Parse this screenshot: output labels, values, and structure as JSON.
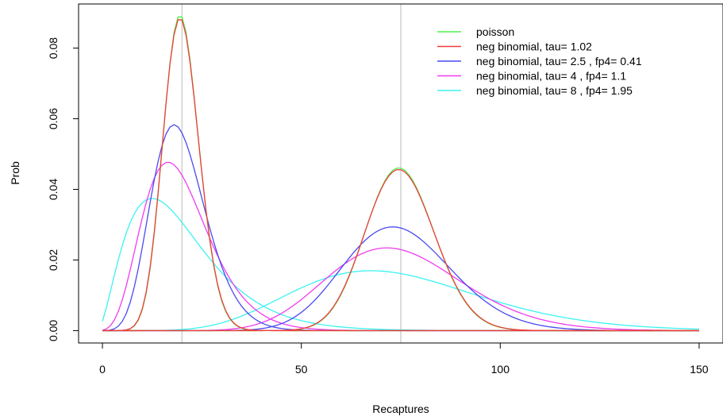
{
  "chart_data": {
    "type": "line",
    "title": "",
    "xlabel": "Recaptures",
    "ylabel": "Prob",
    "xlim": [
      -6,
      156
    ],
    "ylim": [
      -0.0035,
      0.0925
    ],
    "x_ticks": [
      0,
      50,
      100,
      150
    ],
    "x_tick_labels": [
      "0",
      "50",
      "100",
      "150"
    ],
    "y_ticks": [
      0.0,
      0.02,
      0.04,
      0.06,
      0.08
    ],
    "y_tick_labels": [
      "0.00",
      "0.02",
      "0.04",
      "0.06",
      "0.08"
    ],
    "grid": false,
    "vlines": [
      {
        "x": 20,
        "color": "#d0d0d0"
      },
      {
        "x": 75,
        "color": "#d0d0d0"
      }
    ],
    "legend_position": "top-right",
    "series": [
      {
        "name": "poisson",
        "color": "#4cf24c",
        "model": "poisson",
        "means": [
          20,
          75
        ]
      },
      {
        "name": "neg binomial, tau= 1.02",
        "color": "#f23b3b",
        "model": "negbin",
        "tau": 1.02,
        "means": [
          20,
          75
        ]
      },
      {
        "name": "neg binomial, tau= 2.5 ,  fp4= 0.41",
        "color": "#4a4af0",
        "model": "negbin",
        "tau": 2.5,
        "means": [
          20,
          75
        ]
      },
      {
        "name": "neg binomial, tau= 4 , fp4= 1.1",
        "color": "#f03cf0",
        "model": "negbin",
        "tau": 4,
        "means": [
          20,
          75
        ]
      },
      {
        "name": "neg binomial, tau= 8 ,  fp4= 1.95",
        "color": "#3cf2f2",
        "model": "negbin",
        "tau": 8,
        "means": [
          20,
          75
        ]
      }
    ],
    "x_range": [
      0,
      150
    ]
  }
}
